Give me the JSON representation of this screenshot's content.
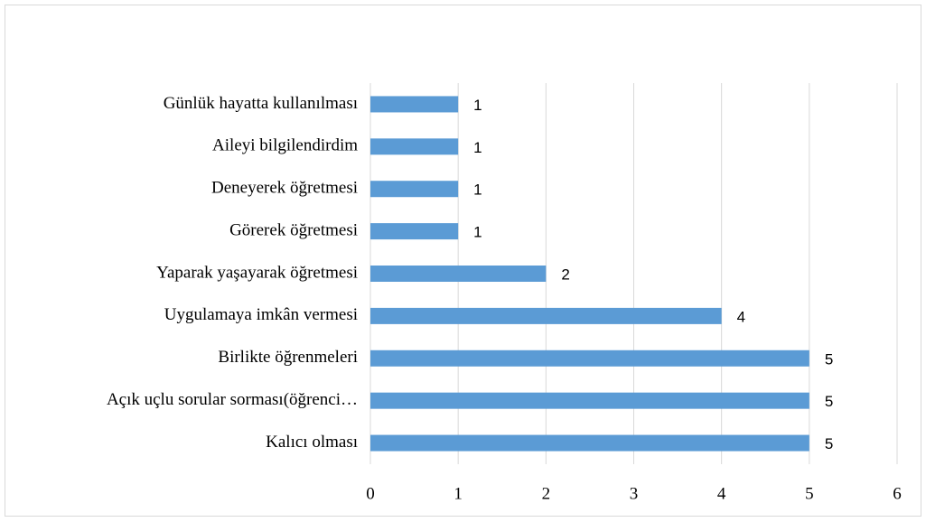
{
  "chart_data": {
    "type": "bar",
    "orientation": "horizontal",
    "categories": [
      "Günlük hayatta kullanılması",
      "Aileyi bilgilendirdim",
      "Deneyerek öğretmesi",
      "Görerek öğretmesi",
      "Yaparak yaşayarak öğretmesi",
      "Uygulamaya imkân vermesi",
      "Birlikte öğrenmeleri",
      "Açık uçlu sorular sorması(öğrenci…",
      "Kalıcı olması"
    ],
    "values": [
      1,
      1,
      1,
      1,
      2,
      4,
      5,
      5,
      5
    ],
    "color": "#5b9bd5",
    "xlim": [
      0,
      6
    ],
    "xticks": [
      0,
      1,
      2,
      3,
      4,
      5,
      6
    ],
    "grid": true
  }
}
